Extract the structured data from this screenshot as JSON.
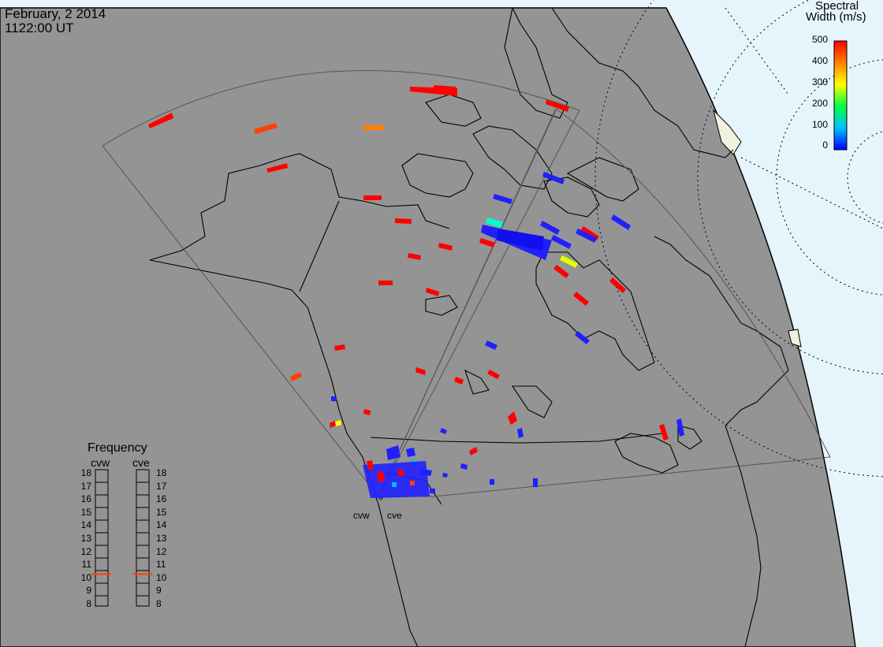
{
  "header": {
    "date": "February, 2 2014",
    "time": "1122:00 UT"
  },
  "colorbar": {
    "title_line1": "Spectral",
    "title_line2": "Width (m/s)",
    "ticks": [
      "500",
      "400",
      "300",
      "200",
      "100",
      "0"
    ],
    "colors": [
      "#ff0000",
      "#ff8000",
      "#ffff00",
      "#00ff00",
      "#00ffff",
      "#0000ff"
    ]
  },
  "frequency_panel": {
    "title": "Frequency",
    "radars": [
      "cvw",
      "cve"
    ],
    "ticks": [
      "18",
      "17",
      "16",
      "15",
      "14",
      "13",
      "12",
      "11",
      "10",
      "9",
      "8"
    ],
    "cvw_value_mhz": 10.5,
    "cve_value_mhz": 10.5,
    "marker_color": "#ff4000"
  },
  "sites": [
    "cvw",
    "cve"
  ],
  "map_colors": {
    "land": "#949494",
    "ocean": "#e6f4fb",
    "night_boundary": "#000000"
  }
}
